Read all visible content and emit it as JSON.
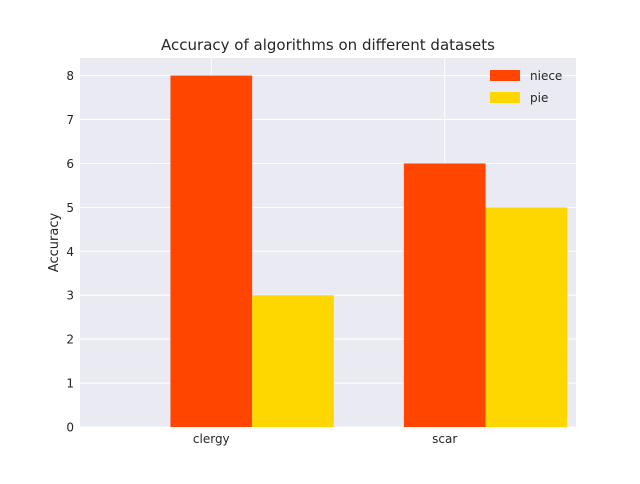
{
  "chart_data": {
    "type": "bar",
    "title": "Accuracy of algorithms on different datasets",
    "xlabel": "",
    "ylabel": "Accuracy",
    "categories": [
      "clergy",
      "scar"
    ],
    "series": [
      {
        "name": "niece",
        "values": [
          8,
          6
        ],
        "color": "#FF4500"
      },
      {
        "name": "pie",
        "values": [
          3,
          5
        ],
        "color": "#FFD700"
      }
    ],
    "ylim": [
      0,
      8.4
    ],
    "yticks": [
      "0",
      "1",
      "2",
      "3",
      "4",
      "5",
      "6",
      "7",
      "8"
    ],
    "grid": true,
    "legend": "top-right",
    "style": {
      "plot_background": "#EAEAF2",
      "grid_color": "#FFFFFF"
    }
  }
}
